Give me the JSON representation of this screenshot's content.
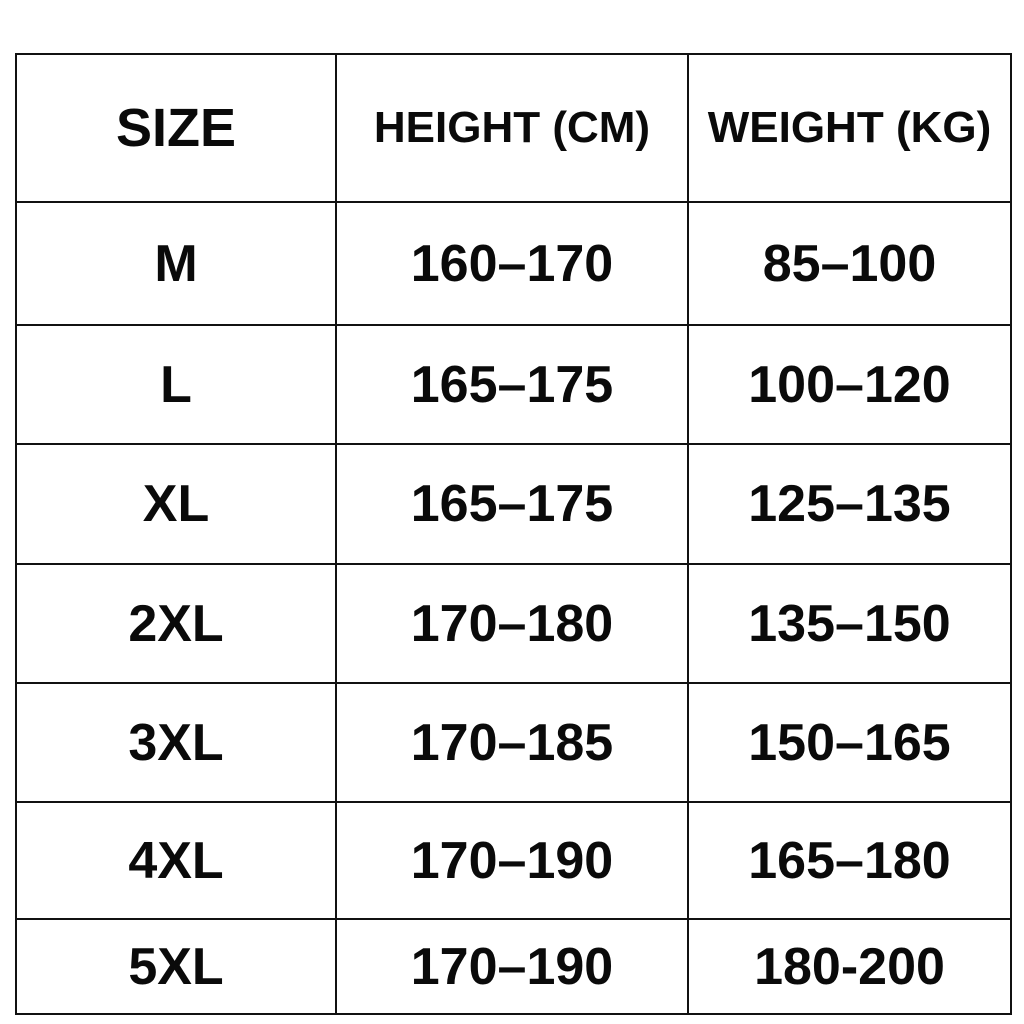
{
  "table": {
    "headers": [
      "SIZE",
      "HEIGHT (CM)",
      "WEIGHT (KG)"
    ],
    "rows": [
      [
        "M",
        "160–170",
        "85–100"
      ],
      [
        "L",
        "165–175",
        "100–120"
      ],
      [
        "XL",
        "165–175",
        "125–135"
      ],
      [
        "2XL",
        "170–180",
        "135–150"
      ],
      [
        "3XL",
        "170–185",
        "150–165"
      ],
      [
        "4XL",
        "170–190",
        "165–180"
      ],
      [
        "5XL",
        "170–190",
        "180-200"
      ]
    ]
  }
}
